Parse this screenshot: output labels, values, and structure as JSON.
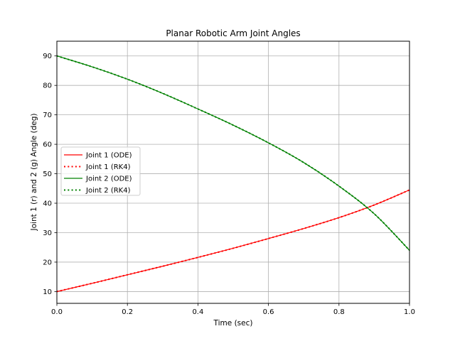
{
  "chart_data": {
    "type": "line",
    "title": "Planar Robotic Arm Joint Angles",
    "xlabel": "Time (sec)",
    "ylabel": "Joint 1 (r) and 2 (g) Angle (deg)",
    "xlim": [
      0,
      1
    ],
    "ylim": [
      6,
      95
    ],
    "xticks": [
      0.0,
      0.2,
      0.4,
      0.6,
      0.8,
      1.0
    ],
    "yticks": [
      10,
      20,
      30,
      40,
      50,
      60,
      70,
      80,
      90
    ],
    "grid": true,
    "legend_position": "center-left",
    "x": [
      0.0,
      0.1,
      0.2,
      0.3,
      0.4,
      0.5,
      0.6,
      0.7,
      0.8,
      0.9,
      1.0
    ],
    "series": [
      {
        "name": "Joint 1 (ODE)",
        "color": "#ff0000",
        "style": "solid",
        "values": [
          10.0,
          12.8,
          15.7,
          18.6,
          21.6,
          24.7,
          28.0,
          31.4,
          35.1,
          39.4,
          44.5
        ]
      },
      {
        "name": "Joint 1 (RK4)",
        "color": "#ff0000",
        "style": "dotted",
        "values": [
          10.0,
          12.8,
          15.7,
          18.6,
          21.6,
          24.7,
          28.0,
          31.4,
          35.1,
          39.4,
          44.5
        ]
      },
      {
        "name": "Joint 2 (ODE)",
        "color": "#008000",
        "style": "solid",
        "values": [
          90.0,
          86.3,
          82.1,
          77.3,
          72.0,
          66.5,
          60.5,
          53.8,
          45.8,
          36.4,
          24.0
        ]
      },
      {
        "name": "Joint 2 (RK4)",
        "color": "#008000",
        "style": "dotted",
        "values": [
          90.0,
          86.3,
          82.1,
          77.3,
          72.0,
          66.5,
          60.5,
          53.8,
          45.8,
          36.4,
          24.0
        ]
      }
    ]
  }
}
